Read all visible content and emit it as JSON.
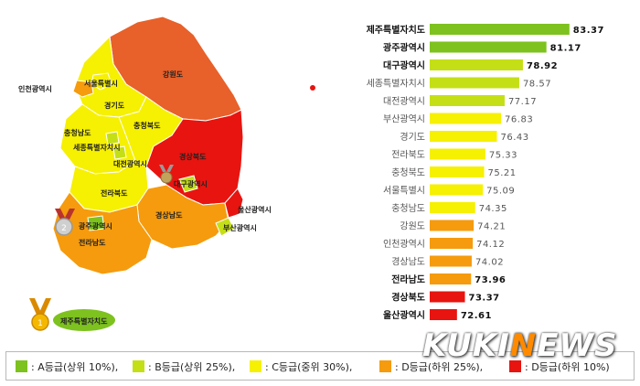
{
  "colors": {
    "gradeA": "#7dc21e",
    "gradeB": "#c5df16",
    "gradeC": "#f6f002",
    "gradeD_plus": "#f59b0d",
    "gradeD": "#e8140f",
    "gangwon": "#e8602a"
  },
  "map_labels": {
    "incheon": "인천광역시",
    "seoul": "서울특별시",
    "gyeonggi": "경기도",
    "gangwon": "강원도",
    "chungbuk": "충청북도",
    "chungnam": "충청남도",
    "sejong": "세종특별자치시",
    "daejeon": "대전광역시",
    "gyeongbuk": "경상북도",
    "daegu": "대구광역시",
    "jeonbuk": "전라북도",
    "gwangju": "광주광역시",
    "gyeongnam": "경상남도",
    "ulsan": "울산광역시",
    "busan": "부산광역시",
    "jeonnam": "전라남도",
    "jeju": "제주특별자치도"
  },
  "chart_data": {
    "type": "bar",
    "orientation": "horizontal",
    "categories": [
      "제주특별자치도",
      "광주광역시",
      "대구광역시",
      "세종특별자치시",
      "대전광역시",
      "부산광역시",
      "경기도",
      "전라북도",
      "충청북도",
      "서울특별시",
      "충청남도",
      "강원도",
      "인천광역시",
      "경상남도",
      "전라남도",
      "경상북도",
      "울산광역시"
    ],
    "values": [
      83.37,
      81.17,
      78.92,
      78.57,
      77.17,
      76.83,
      76.43,
      75.33,
      75.21,
      75.09,
      74.35,
      74.21,
      74.12,
      74.02,
      73.96,
      73.37,
      72.61
    ],
    "value_labels": [
      "83.37",
      "81.17",
      "78.92",
      "78.57",
      "77.17",
      "76.83",
      "76.43",
      "75.33",
      "75.21",
      "75.09",
      "74.35",
      "74.21",
      "74.12",
      "74.02",
      "73.96",
      "73.37",
      "72.61"
    ],
    "grades": [
      "A",
      "A",
      "B",
      "B",
      "B",
      "C",
      "C",
      "C",
      "C",
      "C",
      "C",
      "D+",
      "D+",
      "D+",
      "D+",
      "D",
      "D"
    ],
    "bold": [
      true,
      true,
      true,
      false,
      false,
      false,
      false,
      false,
      false,
      false,
      false,
      false,
      false,
      false,
      true,
      true,
      true
    ],
    "xlim": [
      70,
      84
    ],
    "grid": false
  },
  "legend": [
    {
      "label": ": A등급(상위 10%),",
      "color": "#7dc21e"
    },
    {
      "label": ": B등급(상위 25%),",
      "color": "#c5df16"
    },
    {
      "label": ": C등급(중위 30%),",
      "color": "#f6f002"
    },
    {
      "label": ": D등급(하위 25%),",
      "color": "#f59b0d"
    },
    {
      "label": ": D등급(하위 10%)",
      "color": "#e8140f"
    }
  ],
  "watermark": {
    "text_pre": "KUKI",
    "text_o": "N",
    "text_post": "EWS"
  }
}
